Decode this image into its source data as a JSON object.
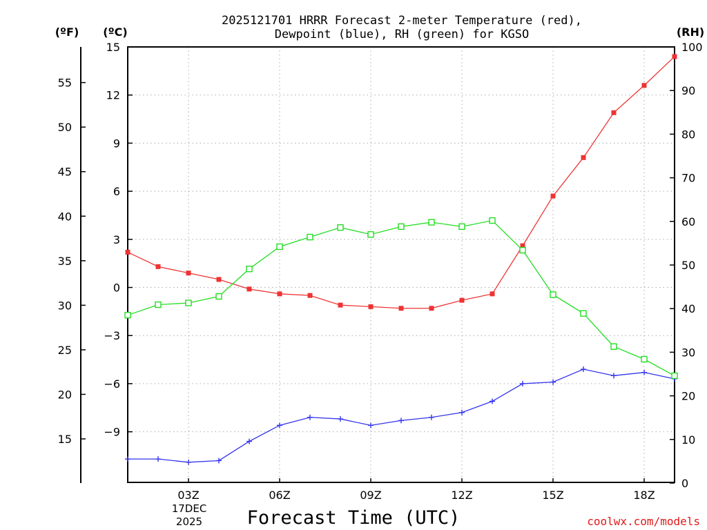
{
  "chart_data": {
    "type": "line",
    "title_line1": "2025121701 HRRR Forecast 2-meter Temperature (red),",
    "title_line2": "Dewpoint (blue), RH (green) for KGSO",
    "xlabel": "Forecast Time (UTC)",
    "left_unit_f": "(ºF)",
    "left_unit_c": "(ºC)",
    "right_unit": "(RH)",
    "date_day": "17DEC",
    "date_year": "2025",
    "credit": "coolwx.com/models",
    "x": [
      1,
      2,
      3,
      4,
      5,
      6,
      7,
      8,
      9,
      10,
      11,
      12,
      13,
      14,
      15,
      16,
      17,
      18,
      19
    ],
    "xlim": [
      1,
      19
    ],
    "x_ticks": [
      3,
      6,
      9,
      12,
      15,
      18
    ],
    "x_tick_labels": [
      "03Z",
      "06Z",
      "09Z",
      "12Z",
      "15Z",
      "18Z"
    ],
    "c_ylim": [
      -12.2,
      15
    ],
    "c_ticks": [
      15,
      12,
      9,
      6,
      3,
      0,
      -3,
      -6,
      -9
    ],
    "c_tick_labels": [
      "15",
      "12",
      "9",
      "6",
      "3",
      "0",
      "−3",
      "−6",
      "−9"
    ],
    "f_ticks": [
      55,
      50,
      45,
      40,
      35,
      30,
      25,
      20,
      15
    ],
    "f_tick_labels": [
      "55",
      "50",
      "45",
      "40",
      "35",
      "30",
      "25",
      "20",
      "15"
    ],
    "rh_ylim": [
      0,
      100
    ],
    "rh_ticks": [
      100,
      90,
      80,
      70,
      60,
      50,
      40,
      30,
      20,
      10,
      0
    ],
    "rh_tick_labels": [
      "100",
      "90",
      "80",
      "70",
      "60",
      "50",
      "40",
      "30",
      "20",
      "10",
      "0"
    ],
    "series": [
      {
        "name": "Temperature",
        "axis": "celsius",
        "color": "#ee3333",
        "marker": "filled-square",
        "values": [
          2.2,
          1.3,
          0.9,
          0.5,
          -0.1,
          -0.4,
          -0.5,
          -1.1,
          -1.2,
          -1.3,
          -1.3,
          -0.8,
          -0.4,
          2.6,
          5.7,
          8.1,
          10.9,
          12.6,
          14.4
        ]
      },
      {
        "name": "Dewpoint",
        "axis": "celsius",
        "color": "#3333ee",
        "marker": "plus",
        "values": [
          -10.7,
          -10.7,
          -10.9,
          -10.8,
          -9.6,
          -8.6,
          -8.1,
          -8.2,
          -8.6,
          -8.3,
          -8.1,
          -7.8,
          -7.1,
          -6.0,
          -5.9,
          -5.1,
          -5.5,
          -5.3,
          -5.7
        ]
      },
      {
        "name": "RH",
        "axis": "rh",
        "color": "#22dd22",
        "marker": "open-square",
        "values": [
          38.5,
          40.9,
          41.3,
          42.8,
          49.1,
          54.2,
          56.4,
          58.6,
          57.0,
          58.8,
          59.8,
          58.8,
          60.2,
          53.4,
          43.2,
          38.9,
          31.3,
          28.4,
          24.6
        ]
      }
    ]
  }
}
